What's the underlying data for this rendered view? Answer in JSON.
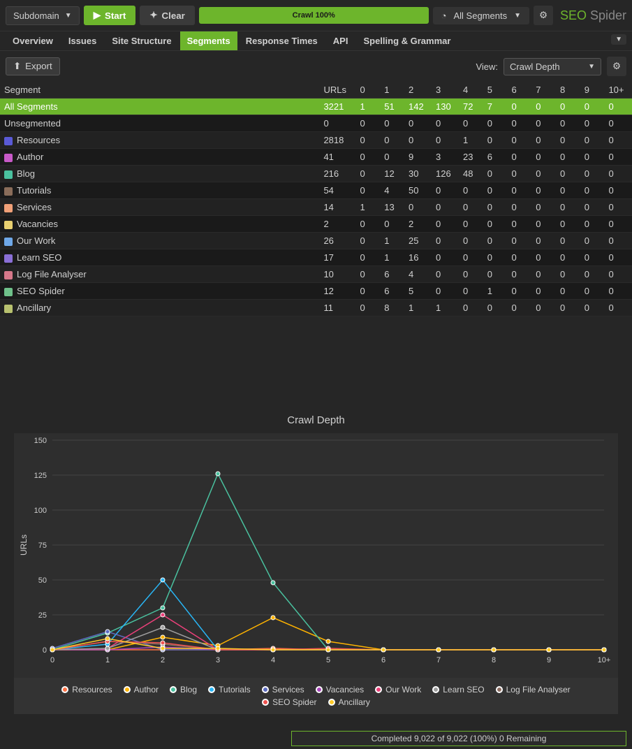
{
  "toolbar": {
    "mode": "Subdomain",
    "start": "Start",
    "clear": "Clear",
    "progress": "Crawl 100%",
    "segments": "All Segments"
  },
  "brand": {
    "part1": "SEO",
    "part2": "Spider"
  },
  "tabs": [
    "Overview",
    "Issues",
    "Site Structure",
    "Segments",
    "Response Times",
    "API",
    "Spelling & Grammar"
  ],
  "active_tab": 3,
  "subbar": {
    "export": "Export",
    "view_label": "View:",
    "view_value": "Crawl Depth"
  },
  "table": {
    "columns": [
      "Segment",
      "URLs",
      "0",
      "1",
      "2",
      "3",
      "4",
      "5",
      "6",
      "7",
      "8",
      "9",
      "10+"
    ],
    "rows": [
      {
        "name": "All Segments",
        "color": null,
        "selected": true,
        "vals": [
          3221,
          1,
          51,
          142,
          130,
          72,
          7,
          0,
          0,
          0,
          0,
          0
        ]
      },
      {
        "name": "Unsegmented",
        "color": null,
        "vals": [
          0,
          0,
          0,
          0,
          0,
          0,
          0,
          0,
          0,
          0,
          0,
          0
        ]
      },
      {
        "name": "Resources",
        "color": "#5a5ad6",
        "vals": [
          2818,
          0,
          0,
          0,
          0,
          1,
          0,
          0,
          0,
          0,
          0,
          0
        ]
      },
      {
        "name": "Author",
        "color": "#c85ac8",
        "vals": [
          41,
          0,
          0,
          9,
          3,
          23,
          6,
          0,
          0,
          0,
          0,
          0
        ]
      },
      {
        "name": "Blog",
        "color": "#4ac19f",
        "vals": [
          216,
          0,
          12,
          30,
          126,
          48,
          0,
          0,
          0,
          0,
          0,
          0
        ]
      },
      {
        "name": "Tutorials",
        "color": "#8a6d5a",
        "vals": [
          54,
          0,
          4,
          50,
          0,
          0,
          0,
          0,
          0,
          0,
          0,
          0
        ]
      },
      {
        "name": "Services",
        "color": "#f0a078",
        "vals": [
          14,
          1,
          13,
          0,
          0,
          0,
          0,
          0,
          0,
          0,
          0,
          0
        ]
      },
      {
        "name": "Vacancies",
        "color": "#e8d070",
        "vals": [
          2,
          0,
          0,
          2,
          0,
          0,
          0,
          0,
          0,
          0,
          0,
          0
        ]
      },
      {
        "name": "Our Work",
        "color": "#6fa8e8",
        "vals": [
          26,
          0,
          1,
          25,
          0,
          0,
          0,
          0,
          0,
          0,
          0,
          0
        ]
      },
      {
        "name": "Learn SEO",
        "color": "#8a6fd6",
        "vals": [
          17,
          0,
          1,
          16,
          0,
          0,
          0,
          0,
          0,
          0,
          0,
          0
        ]
      },
      {
        "name": "Log File Analyser",
        "color": "#d6788a",
        "vals": [
          10,
          0,
          6,
          4,
          0,
          0,
          0,
          0,
          0,
          0,
          0,
          0
        ]
      },
      {
        "name": "SEO Spider",
        "color": "#6fc18a",
        "vals": [
          12,
          0,
          6,
          5,
          0,
          0,
          1,
          0,
          0,
          0,
          0,
          0
        ]
      },
      {
        "name": "Ancillary",
        "color": "#b8c16f",
        "vals": [
          11,
          0,
          8,
          1,
          1,
          0,
          0,
          0,
          0,
          0,
          0,
          0
        ]
      }
    ]
  },
  "chart": {
    "title": "Crawl Depth",
    "ylabel": "URLs",
    "xticks": [
      "0",
      "1",
      "2",
      "3",
      "4",
      "5",
      "6",
      "7",
      "8",
      "9",
      "10+"
    ],
    "yticks": [
      0,
      25,
      50,
      75,
      100,
      125,
      150
    ],
    "ylim": [
      0,
      150
    ],
    "background_color": "#2e2e2e",
    "grid_color": "#444444",
    "marker_stroke": "#ffffff",
    "line_width": 1.5,
    "marker_radius": 3,
    "series": [
      {
        "name": "Resources",
        "color": "#ff7043",
        "data": [
          0,
          0,
          0,
          0,
          1,
          0,
          0,
          0,
          0,
          0,
          0
        ]
      },
      {
        "name": "Author",
        "color": "#ffb300",
        "data": [
          0,
          0,
          9,
          3,
          23,
          6,
          0,
          0,
          0,
          0,
          0
        ]
      },
      {
        "name": "Blog",
        "color": "#4ac19f",
        "data": [
          0,
          12,
          30,
          126,
          48,
          0,
          0,
          0,
          0,
          0,
          0
        ]
      },
      {
        "name": "Tutorials",
        "color": "#29b6f6",
        "data": [
          0,
          4,
          50,
          0,
          0,
          0,
          0,
          0,
          0,
          0,
          0
        ]
      },
      {
        "name": "Services",
        "color": "#5c6bc0",
        "data": [
          1,
          13,
          0,
          0,
          0,
          0,
          0,
          0,
          0,
          0,
          0
        ]
      },
      {
        "name": "Vacancies",
        "color": "#ab47bc",
        "data": [
          0,
          0,
          2,
          0,
          0,
          0,
          0,
          0,
          0,
          0,
          0
        ]
      },
      {
        "name": "Our Work",
        "color": "#ec407a",
        "data": [
          0,
          1,
          25,
          0,
          0,
          0,
          0,
          0,
          0,
          0,
          0
        ]
      },
      {
        "name": "Learn SEO",
        "color": "#9e9e9e",
        "data": [
          0,
          1,
          16,
          0,
          0,
          0,
          0,
          0,
          0,
          0,
          0
        ]
      },
      {
        "name": "Log File Analyser",
        "color": "#8d6e63",
        "data": [
          0,
          6,
          4,
          0,
          0,
          0,
          0,
          0,
          0,
          0,
          0
        ]
      },
      {
        "name": "SEO Spider",
        "color": "#ef5350",
        "data": [
          0,
          6,
          5,
          0,
          0,
          1,
          0,
          0,
          0,
          0,
          0
        ]
      },
      {
        "name": "Ancillary",
        "color": "#ffca28",
        "data": [
          0,
          8,
          1,
          1,
          0,
          0,
          0,
          0,
          0,
          0,
          0
        ]
      }
    ]
  },
  "status": "Completed 9,022 of 9,022 (100%) 0 Remaining"
}
